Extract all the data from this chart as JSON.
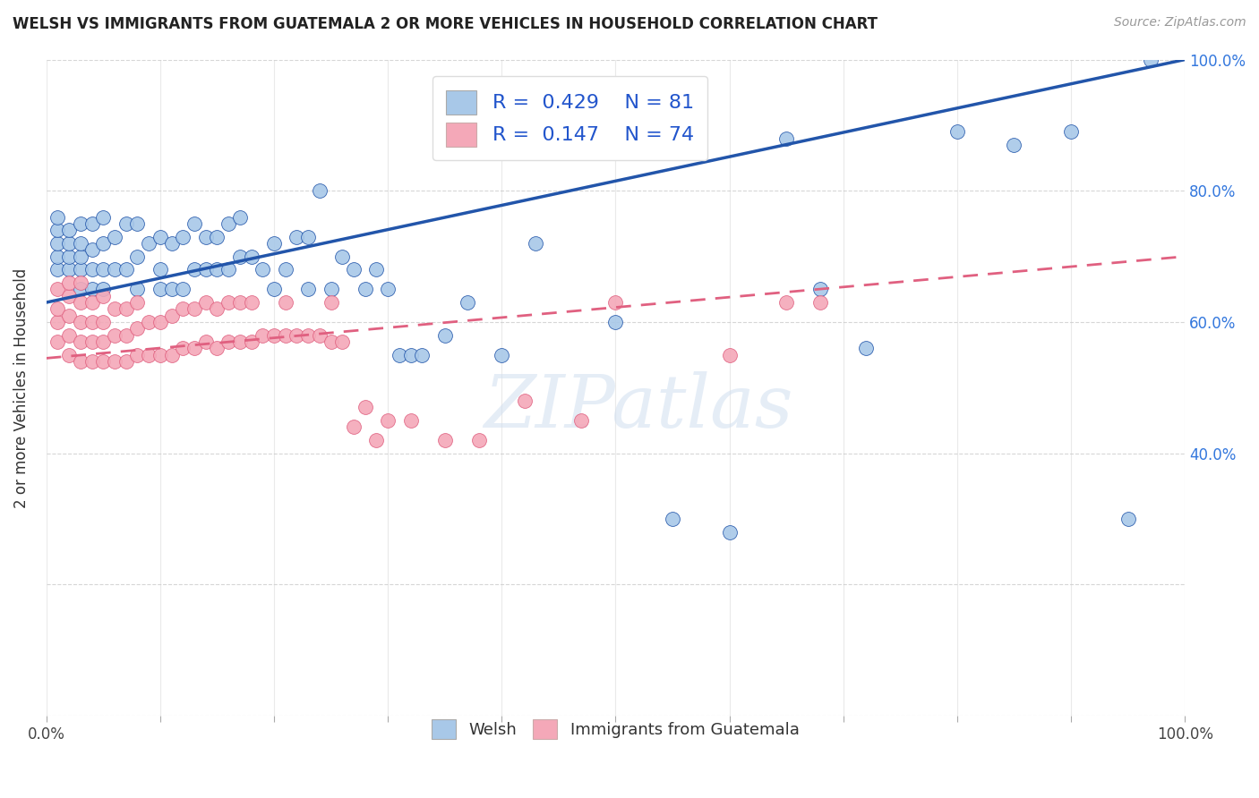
{
  "title": "WELSH VS IMMIGRANTS FROM GUATEMALA 2 OR MORE VEHICLES IN HOUSEHOLD CORRELATION CHART",
  "source": "Source: ZipAtlas.com",
  "ylabel": "2 or more Vehicles in Household",
  "watermark": "ZIPatlas",
  "legend_R1": "0.429",
  "legend_N1": "81",
  "legend_R2": "0.147",
  "legend_N2": "74",
  "color_welsh": "#a8c8e8",
  "color_guatemala": "#f4a8b8",
  "color_line_welsh": "#2255aa",
  "color_line_guatemala": "#e06080",
  "xlim": [
    0.0,
    1.0
  ],
  "ylim": [
    0.0,
    1.0
  ],
  "welsh_line_x0": 0.0,
  "welsh_line_y0": 0.63,
  "welsh_line_x1": 1.0,
  "welsh_line_y1": 1.0,
  "guatemala_line_x0": 0.0,
  "guatemala_line_y0": 0.545,
  "guatemala_line_x1": 1.0,
  "guatemala_line_y1": 0.7,
  "welsh_x": [
    0.01,
    0.01,
    0.01,
    0.01,
    0.01,
    0.02,
    0.02,
    0.02,
    0.02,
    0.03,
    0.03,
    0.03,
    0.03,
    0.03,
    0.04,
    0.04,
    0.04,
    0.04,
    0.05,
    0.05,
    0.05,
    0.05,
    0.06,
    0.06,
    0.07,
    0.07,
    0.08,
    0.08,
    0.08,
    0.09,
    0.1,
    0.1,
    0.1,
    0.11,
    0.11,
    0.12,
    0.12,
    0.13,
    0.13,
    0.14,
    0.14,
    0.15,
    0.15,
    0.16,
    0.16,
    0.17,
    0.17,
    0.18,
    0.19,
    0.2,
    0.2,
    0.21,
    0.22,
    0.23,
    0.23,
    0.24,
    0.25,
    0.26,
    0.27,
    0.28,
    0.29,
    0.3,
    0.31,
    0.32,
    0.33,
    0.35,
    0.37,
    0.4,
    0.43,
    0.45,
    0.5,
    0.55,
    0.6,
    0.65,
    0.68,
    0.72,
    0.8,
    0.85,
    0.9,
    0.95,
    0.97
  ],
  "welsh_y": [
    0.68,
    0.7,
    0.72,
    0.74,
    0.76,
    0.68,
    0.7,
    0.72,
    0.74,
    0.65,
    0.68,
    0.7,
    0.72,
    0.75,
    0.65,
    0.68,
    0.71,
    0.75,
    0.65,
    0.68,
    0.72,
    0.76,
    0.68,
    0.73,
    0.68,
    0.75,
    0.65,
    0.7,
    0.75,
    0.72,
    0.65,
    0.68,
    0.73,
    0.65,
    0.72,
    0.65,
    0.73,
    0.68,
    0.75,
    0.68,
    0.73,
    0.68,
    0.73,
    0.68,
    0.75,
    0.7,
    0.76,
    0.7,
    0.68,
    0.65,
    0.72,
    0.68,
    0.73,
    0.65,
    0.73,
    0.8,
    0.65,
    0.7,
    0.68,
    0.65,
    0.68,
    0.65,
    0.55,
    0.55,
    0.55,
    0.58,
    0.63,
    0.55,
    0.72,
    0.86,
    0.6,
    0.3,
    0.28,
    0.88,
    0.65,
    0.56,
    0.89,
    0.87,
    0.89,
    0.3,
    1.0
  ],
  "guatemala_x": [
    0.01,
    0.01,
    0.01,
    0.01,
    0.02,
    0.02,
    0.02,
    0.02,
    0.02,
    0.03,
    0.03,
    0.03,
    0.03,
    0.03,
    0.04,
    0.04,
    0.04,
    0.04,
    0.05,
    0.05,
    0.05,
    0.05,
    0.06,
    0.06,
    0.06,
    0.07,
    0.07,
    0.07,
    0.08,
    0.08,
    0.08,
    0.09,
    0.09,
    0.1,
    0.1,
    0.11,
    0.11,
    0.12,
    0.12,
    0.13,
    0.13,
    0.14,
    0.14,
    0.15,
    0.15,
    0.16,
    0.16,
    0.17,
    0.17,
    0.18,
    0.18,
    0.19,
    0.2,
    0.21,
    0.21,
    0.22,
    0.23,
    0.24,
    0.25,
    0.25,
    0.26,
    0.27,
    0.28,
    0.29,
    0.3,
    0.32,
    0.35,
    0.38,
    0.42,
    0.47,
    0.5,
    0.6,
    0.65,
    0.68
  ],
  "guatemala_y": [
    0.57,
    0.6,
    0.62,
    0.65,
    0.55,
    0.58,
    0.61,
    0.64,
    0.66,
    0.54,
    0.57,
    0.6,
    0.63,
    0.66,
    0.54,
    0.57,
    0.6,
    0.63,
    0.54,
    0.57,
    0.6,
    0.64,
    0.54,
    0.58,
    0.62,
    0.54,
    0.58,
    0.62,
    0.55,
    0.59,
    0.63,
    0.55,
    0.6,
    0.55,
    0.6,
    0.55,
    0.61,
    0.56,
    0.62,
    0.56,
    0.62,
    0.57,
    0.63,
    0.56,
    0.62,
    0.57,
    0.63,
    0.57,
    0.63,
    0.57,
    0.63,
    0.58,
    0.58,
    0.58,
    0.63,
    0.58,
    0.58,
    0.58,
    0.57,
    0.63,
    0.57,
    0.44,
    0.47,
    0.42,
    0.45,
    0.45,
    0.42,
    0.42,
    0.48,
    0.45,
    0.63,
    0.55,
    0.63,
    0.63
  ]
}
